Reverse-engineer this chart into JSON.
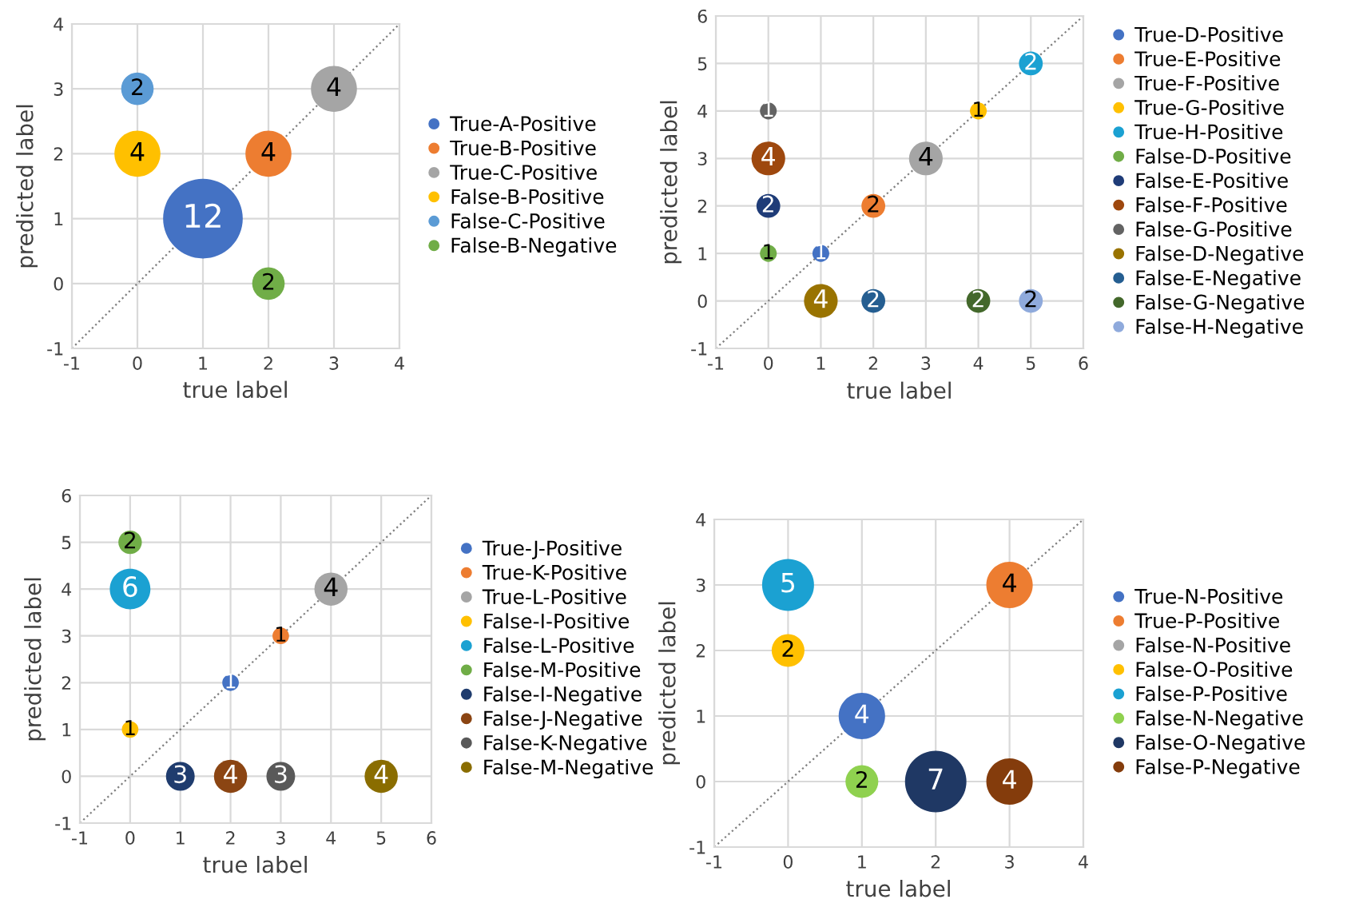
{
  "chart_data": [
    {
      "type": "bubble",
      "xlabel": "true label",
      "ylabel": "predicted label",
      "xlim": [
        -1,
        4
      ],
      "ylim": [
        -1,
        4
      ],
      "xticks": [
        -1,
        0,
        1,
        2,
        3,
        4
      ],
      "yticks": [
        -1,
        0,
        1,
        2,
        3,
        4
      ],
      "grid": true,
      "legend": "right",
      "marker": "circle",
      "series": [
        {
          "name": "True-A-Positive",
          "color": "#4472c4",
          "x": [
            1
          ],
          "values": [
            1
          ],
          "sizes": [
            12
          ],
          "value_labels": [
            "12"
          ]
        },
        {
          "name": "True-B-Positive",
          "color": "#ed7d31",
          "x": [
            2
          ],
          "values": [
            2
          ],
          "sizes": [
            4
          ],
          "value_labels": [
            "4"
          ]
        },
        {
          "name": "True-C-Positive",
          "color": "#a5a5a5",
          "x": [
            3
          ],
          "values": [
            3
          ],
          "sizes": [
            4
          ],
          "value_labels": [
            "4"
          ]
        },
        {
          "name": "False-B-Positive",
          "color": "#ffc000",
          "x": [
            0
          ],
          "values": [
            2
          ],
          "sizes": [
            4
          ],
          "value_labels": [
            "4"
          ]
        },
        {
          "name": "False-C-Positive",
          "color": "#5b9bd5",
          "x": [
            0
          ],
          "values": [
            3
          ],
          "sizes": [
            2
          ],
          "value_labels": [
            "2"
          ]
        },
        {
          "name": "False-B-Negative",
          "color": "#70ad47",
          "x": [
            2
          ],
          "values": [
            0
          ],
          "sizes": [
            2
          ],
          "value_labels": [
            "2"
          ]
        },
        {
          "type": "line",
          "color": "#7f7f7f",
          "line_style": "dotted",
          "marker": "none",
          "x": [
            -1,
            4
          ],
          "values": [
            -1,
            4
          ]
        }
      ]
    },
    {
      "type": "bubble",
      "xlabel": "true label",
      "ylabel": "predicted label",
      "xlim": [
        -1,
        6
      ],
      "ylim": [
        -1,
        6
      ],
      "xticks": [
        -1,
        0,
        1,
        2,
        3,
        4,
        5,
        6
      ],
      "yticks": [
        -1,
        0,
        1,
        2,
        3,
        4,
        5,
        6
      ],
      "grid": true,
      "legend": "right",
      "marker": "circle",
      "series": [
        {
          "name": "True-D-Positive",
          "color": "#4472c4",
          "x": [
            1
          ],
          "values": [
            1
          ],
          "sizes": [
            1
          ],
          "value_labels": [
            "1"
          ]
        },
        {
          "name": "True-E-Positive",
          "color": "#ed7d31",
          "x": [
            2
          ],
          "values": [
            2
          ],
          "sizes": [
            2
          ],
          "value_labels": [
            "2"
          ]
        },
        {
          "name": "True-F-Positive",
          "color": "#a5a5a5",
          "x": [
            3
          ],
          "values": [
            3
          ],
          "sizes": [
            4
          ],
          "value_labels": [
            "4"
          ]
        },
        {
          "name": "True-G-Positive",
          "color": "#ffc000",
          "x": [
            4
          ],
          "values": [
            4
          ],
          "sizes": [
            1
          ],
          "value_labels": [
            "1"
          ]
        },
        {
          "name": "True-H-Positive",
          "color": "#1ba1d2",
          "x": [
            5
          ],
          "values": [
            5
          ],
          "sizes": [
            2
          ],
          "value_labels": [
            "2"
          ]
        },
        {
          "name": "False-D-Positive",
          "color": "#70ad47",
          "x": [
            0
          ],
          "values": [
            1
          ],
          "sizes": [
            1
          ],
          "value_labels": [
            "1"
          ]
        },
        {
          "name": "False-E-Positive",
          "color": "#1f3c78",
          "x": [
            0
          ],
          "values": [
            2
          ],
          "sizes": [
            2
          ],
          "value_labels": [
            "2"
          ]
        },
        {
          "name": "False-F-Positive",
          "color": "#9e480e",
          "x": [
            0
          ],
          "values": [
            3
          ],
          "sizes": [
            4
          ],
          "value_labels": [
            "4"
          ]
        },
        {
          "name": "False-G-Positive",
          "color": "#636363",
          "x": [
            0
          ],
          "values": [
            4
          ],
          "sizes": [
            1
          ],
          "value_labels": [
            "1"
          ]
        },
        {
          "name": "False-D-Negative",
          "color": "#997300",
          "x": [
            1
          ],
          "values": [
            0
          ],
          "sizes": [
            4
          ],
          "value_labels": [
            "4"
          ]
        },
        {
          "name": "False-E-Negative",
          "color": "#255e91",
          "x": [
            2
          ],
          "values": [
            0
          ],
          "sizes": [
            2
          ],
          "value_labels": [
            "2"
          ]
        },
        {
          "name": "False-G-Negative",
          "color": "#43682b",
          "x": [
            4
          ],
          "values": [
            0
          ],
          "sizes": [
            2
          ],
          "value_labels": [
            "2"
          ]
        },
        {
          "name": "False-H-Negative",
          "color": "#8faadc",
          "x": [
            5
          ],
          "values": [
            0
          ],
          "sizes": [
            2
          ],
          "value_labels": [
            "2"
          ]
        },
        {
          "type": "line",
          "color": "#7f7f7f",
          "line_style": "dotted",
          "marker": "none",
          "x": [
            -1,
            6
          ],
          "values": [
            -1,
            6
          ]
        }
      ]
    },
    {
      "type": "bubble",
      "xlabel": "true label",
      "ylabel": "predicted label",
      "xlim": [
        -1,
        6
      ],
      "ylim": [
        -1,
        6
      ],
      "xticks": [
        -1,
        0,
        1,
        2,
        3,
        4,
        5,
        6
      ],
      "yticks": [
        -1,
        0,
        1,
        2,
        3,
        4,
        5,
        6
      ],
      "grid": true,
      "legend": "right",
      "marker": "circle",
      "series": [
        {
          "name": "True-J-Positive",
          "color": "#4472c4",
          "x": [
            2
          ],
          "values": [
            2
          ],
          "sizes": [
            1
          ],
          "value_labels": [
            "1"
          ]
        },
        {
          "name": "True-K-Positive",
          "color": "#ed7d31",
          "x": [
            3
          ],
          "values": [
            3
          ],
          "sizes": [
            1
          ],
          "value_labels": [
            "1"
          ]
        },
        {
          "name": "True-L-Positive",
          "color": "#a5a5a5",
          "x": [
            4
          ],
          "values": [
            4
          ],
          "sizes": [
            4
          ],
          "value_labels": [
            "4"
          ]
        },
        {
          "name": "False-I-Positive",
          "color": "#ffc000",
          "x": [
            0
          ],
          "values": [
            1
          ],
          "sizes": [
            1
          ],
          "value_labels": [
            "1"
          ]
        },
        {
          "name": "False-L-Positive",
          "color": "#1ba1d2",
          "x": [
            0
          ],
          "values": [
            4
          ],
          "sizes": [
            6
          ],
          "value_labels": [
            "6"
          ]
        },
        {
          "name": "False-M-Positive",
          "color": "#70ad47",
          "x": [
            0
          ],
          "values": [
            5
          ],
          "sizes": [
            2
          ],
          "value_labels": [
            "2"
          ]
        },
        {
          "name": "False-I-Negative",
          "color": "#1f3c6e",
          "x": [
            1
          ],
          "values": [
            0
          ],
          "sizes": [
            3
          ],
          "value_labels": [
            "3"
          ]
        },
        {
          "name": "False-J-Negative",
          "color": "#8b4513",
          "x": [
            2
          ],
          "values": [
            0
          ],
          "sizes": [
            4
          ],
          "value_labels": [
            "4"
          ]
        },
        {
          "name": "False-K-Negative",
          "color": "#595959",
          "x": [
            3
          ],
          "values": [
            0
          ],
          "sizes": [
            3
          ],
          "value_labels": [
            "3"
          ]
        },
        {
          "name": "False-M-Negative",
          "color": "#8a6d00",
          "x": [
            5
          ],
          "values": [
            0
          ],
          "sizes": [
            4
          ],
          "value_labels": [
            "4"
          ]
        },
        {
          "type": "line",
          "color": "#7f7f7f",
          "line_style": "dotted",
          "marker": "none",
          "x": [
            -1,
            6
          ],
          "values": [
            -1,
            6
          ]
        }
      ]
    },
    {
      "type": "bubble",
      "xlabel": "true label",
      "ylabel": "predicted label",
      "xlim": [
        -1,
        4
      ],
      "ylim": [
        -1,
        4
      ],
      "xticks": [
        -1,
        0,
        1,
        2,
        3,
        4
      ],
      "yticks": [
        -1,
        0,
        1,
        2,
        3,
        4
      ],
      "grid": true,
      "legend": "right",
      "marker": "circle",
      "series": [
        {
          "name": "True-N-Positive",
          "color": "#4472c4",
          "x": [
            1
          ],
          "values": [
            1
          ],
          "sizes": [
            4
          ],
          "value_labels": [
            "4"
          ]
        },
        {
          "name": "True-P-Positive",
          "color": "#ed7d31",
          "x": [
            3
          ],
          "values": [
            3
          ],
          "sizes": [
            4
          ],
          "value_labels": [
            "4"
          ]
        },
        {
          "name": "False-N-Positive",
          "color": "#a5a5a5",
          "x": [
            null
          ],
          "values": [
            null
          ],
          "sizes": [
            null
          ],
          "value_labels": [
            null
          ]
        },
        {
          "name": "False-O-Positive",
          "color": "#ffc000",
          "x": [
            0
          ],
          "values": [
            2
          ],
          "sizes": [
            2
          ],
          "value_labels": [
            "2"
          ]
        },
        {
          "name": "False-P-Positive",
          "color": "#1ba1d2",
          "x": [
            0
          ],
          "values": [
            3
          ],
          "sizes": [
            5
          ],
          "value_labels": [
            "5"
          ]
        },
        {
          "name": "False-N-Negative",
          "color": "#8fd14f",
          "x": [
            1
          ],
          "values": [
            0
          ],
          "sizes": [
            2
          ],
          "value_labels": [
            "2"
          ]
        },
        {
          "name": "False-O-Negative",
          "color": "#1f3864",
          "x": [
            2
          ],
          "values": [
            0
          ],
          "sizes": [
            7
          ],
          "value_labels": [
            "7"
          ]
        },
        {
          "name": "False-P-Negative",
          "color": "#843c0c",
          "x": [
            3
          ],
          "values": [
            0
          ],
          "sizes": [
            4
          ],
          "value_labels": [
            "4"
          ]
        },
        {
          "type": "line",
          "color": "#7f7f7f",
          "line_style": "dotted",
          "marker": "none",
          "x": [
            -1,
            4
          ],
          "values": [
            -1,
            4
          ]
        }
      ]
    }
  ]
}
